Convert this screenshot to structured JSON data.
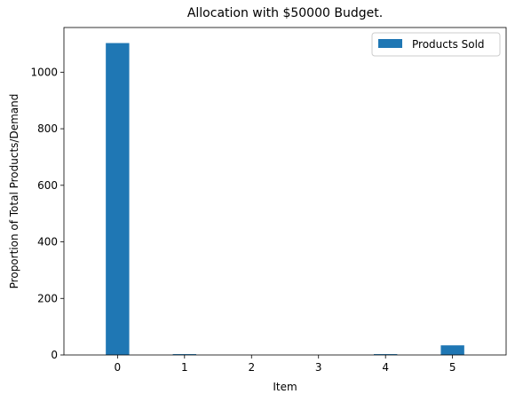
{
  "chart_data": {
    "type": "bar",
    "title": "Allocation with $50000 Budget.",
    "xlabel": "Item",
    "ylabel": "Proportion of Total Products/Demand",
    "categories": [
      "0",
      "1",
      "2",
      "3",
      "4",
      "5"
    ],
    "series": [
      {
        "name": "Products Sold",
        "values": [
          1103,
          3,
          0,
          0,
          3,
          34
        ],
        "color": "#1f77b4"
      }
    ],
    "ylim": [
      0,
      1158
    ],
    "yticks": [
      0,
      200,
      400,
      600,
      800,
      1000
    ],
    "ytick_labels": [
      "0",
      "200",
      "400",
      "600",
      "800",
      "1000"
    ],
    "grid": false,
    "legend_position": "top-right"
  }
}
